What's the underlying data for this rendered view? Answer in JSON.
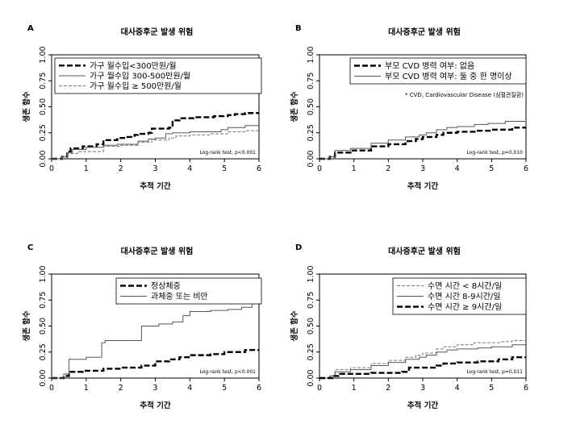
{
  "chart_data": [
    {
      "panel": "A",
      "type": "line",
      "title": "대사증후군 발생 위험",
      "xlabel": "추적 기간",
      "ylabel": "생존 함수",
      "xlim": [
        0,
        6
      ],
      "ylim": [
        0,
        1
      ],
      "xticks": [
        "0",
        "1",
        "2",
        "3",
        "4",
        "5",
        "6"
      ],
      "yticks": [
        "0.00",
        "0.25",
        "0.50",
        "0.75",
        "1.00"
      ],
      "legend_position": "top-left",
      "note": "Log-rank test, p<0.001",
      "footnote": "",
      "series": [
        {
          "name": "가구 월수입<300만원/월",
          "style": "dash-bold",
          "color": "#000000",
          "x": [
            0,
            0.3,
            0.45,
            0.55,
            0.9,
            1.3,
            1.5,
            1.9,
            2.1,
            2.4,
            2.5,
            2.8,
            2.9,
            3.4,
            3.5,
            3.7,
            4.1,
            4.7,
            5.1,
            5.3,
            5.6,
            6
          ],
          "y": [
            0,
            0.02,
            0.07,
            0.1,
            0.12,
            0.14,
            0.18,
            0.2,
            0.21,
            0.23,
            0.24,
            0.25,
            0.29,
            0.3,
            0.37,
            0.39,
            0.4,
            0.41,
            0.42,
            0.43,
            0.44,
            0.44
          ]
        },
        {
          "name": "가구 월수입 300-500만원/월",
          "style": "solid",
          "color": "#555555",
          "x": [
            0,
            0.3,
            0.45,
            0.6,
            1.0,
            1.5,
            1.9,
            2.5,
            2.8,
            3.0,
            3.3,
            3.5,
            4.0,
            4.6,
            4.9,
            5.1,
            5.6,
            6
          ],
          "y": [
            0,
            0.02,
            0.06,
            0.09,
            0.11,
            0.13,
            0.14,
            0.17,
            0.19,
            0.2,
            0.24,
            0.25,
            0.26,
            0.26,
            0.28,
            0.3,
            0.32,
            0.32
          ]
        },
        {
          "name": "가구 월수입 ≥ 500만원/월",
          "style": "dash-thin",
          "color": "#777777",
          "x": [
            0,
            0.3,
            0.45,
            0.75,
            1.5,
            2.0,
            2.5,
            2.9,
            3.4,
            3.6,
            4.0,
            4.6,
            5.1,
            5.6,
            6
          ],
          "y": [
            0,
            0.02,
            0.05,
            0.07,
            0.12,
            0.13,
            0.16,
            0.18,
            0.2,
            0.22,
            0.23,
            0.24,
            0.26,
            0.27,
            0.27
          ]
        }
      ]
    },
    {
      "panel": "B",
      "type": "line",
      "title": "대사증후군 발생 위험",
      "xlabel": "추적 기간",
      "ylabel": "생존 함수",
      "xlim": [
        0,
        6
      ],
      "ylim": [
        0,
        1
      ],
      "xticks": [
        "0",
        "1",
        "2",
        "3",
        "4",
        "5",
        "6"
      ],
      "yticks": [
        "0.00",
        "0.25",
        "0.50",
        "0.75",
        "1.00"
      ],
      "legend_position": "top-left",
      "note": "Log-rank test, p=0.010",
      "footnote": "* CVD, Cardiovascular Disease (심혈관질환)",
      "series": [
        {
          "name": "부모 CVD 병력 여부: 없음",
          "style": "dash-bold",
          "color": "#000000",
          "x": [
            0,
            0.3,
            0.45,
            0.9,
            1.5,
            2.0,
            2.5,
            2.8,
            3.0,
            3.4,
            3.6,
            4.0,
            4.6,
            5.0,
            5.6,
            6
          ],
          "y": [
            0,
            0.02,
            0.06,
            0.08,
            0.12,
            0.14,
            0.17,
            0.19,
            0.21,
            0.23,
            0.25,
            0.26,
            0.27,
            0.28,
            0.3,
            0.3
          ]
        },
        {
          "name": "부모 CVD 병력 여부: 둘 중 한 명이상",
          "style": "solid",
          "color": "#555555",
          "x": [
            0,
            0.3,
            0.45,
            0.9,
            1.5,
            2.0,
            2.5,
            2.9,
            3.1,
            3.4,
            3.7,
            4.0,
            4.5,
            4.9,
            5.4,
            6
          ],
          "y": [
            0,
            0.02,
            0.08,
            0.1,
            0.15,
            0.18,
            0.21,
            0.23,
            0.25,
            0.28,
            0.3,
            0.31,
            0.33,
            0.34,
            0.36,
            0.37
          ]
        }
      ]
    },
    {
      "panel": "C",
      "type": "line",
      "title": "대사증후군 발생 위험",
      "xlabel": "추적 기간",
      "ylabel": "생존 함수",
      "xlim": [
        0,
        6
      ],
      "ylim": [
        0,
        1
      ],
      "xticks": [
        "0",
        "1",
        "2",
        "3",
        "4",
        "5",
        "6"
      ],
      "yticks": [
        "0.00",
        "0.25",
        "0.50",
        "0.75",
        "1.00"
      ],
      "legend_position": "top-left",
      "note": "Log-rank test, p<0.001",
      "footnote": "",
      "series": [
        {
          "name": "정상체중",
          "style": "dash-bold",
          "color": "#000000",
          "x": [
            0,
            0.35,
            0.5,
            0.9,
            1.5,
            2.0,
            2.6,
            3.0,
            3.4,
            3.7,
            4.0,
            4.6,
            5.0,
            5.6,
            6
          ],
          "y": [
            0,
            0.02,
            0.06,
            0.07,
            0.09,
            0.1,
            0.12,
            0.16,
            0.18,
            0.2,
            0.22,
            0.23,
            0.25,
            0.27,
            0.27
          ]
        },
        {
          "name": "과체중 또는 비만",
          "style": "solid",
          "color": "#555555",
          "x": [
            0,
            0.35,
            0.5,
            1.0,
            1.45,
            1.55,
            2.4,
            2.6,
            3.1,
            3.5,
            3.8,
            4.0,
            4.6,
            5.1,
            5.5,
            5.8,
            6
          ],
          "y": [
            0,
            0.04,
            0.18,
            0.2,
            0.34,
            0.36,
            0.36,
            0.5,
            0.52,
            0.54,
            0.6,
            0.64,
            0.65,
            0.66,
            0.68,
            0.72,
            0.73
          ]
        }
      ]
    },
    {
      "panel": "D",
      "type": "line",
      "title": "대사증후군 발생 위험",
      "xlabel": "추적 기간",
      "ylabel": "생존 함수",
      "xlim": [
        0,
        6
      ],
      "ylim": [
        0,
        1
      ],
      "xticks": [
        "0",
        "1",
        "2",
        "3",
        "4",
        "5",
        "6"
      ],
      "yticks": [
        "0.00",
        "0.25",
        "0.50",
        "0.75",
        "1.00"
      ],
      "legend_position": "top-left",
      "note": "Log-rank test, p=0.011",
      "footnote": "",
      "series": [
        {
          "name": "수면 시간 < 8시간/일",
          "style": "dash-thin",
          "color": "#777777",
          "x": [
            0,
            0.3,
            0.45,
            0.9,
            1.5,
            2.0,
            2.5,
            2.8,
            3.0,
            3.4,
            3.6,
            4.0,
            4.5,
            4.9,
            5.3,
            5.6,
            6
          ],
          "y": [
            0,
            0.02,
            0.08,
            0.1,
            0.14,
            0.17,
            0.2,
            0.22,
            0.24,
            0.28,
            0.3,
            0.32,
            0.34,
            0.34,
            0.35,
            0.36,
            0.36
          ]
        },
        {
          "name": "수면 시간 8-9시간/일",
          "style": "solid",
          "color": "#555555",
          "x": [
            0,
            0.3,
            0.45,
            0.9,
            1.5,
            2.0,
            2.5,
            2.9,
            3.1,
            3.4,
            3.7,
            4.0,
            4.6,
            5.0,
            5.6,
            6
          ],
          "y": [
            0,
            0.02,
            0.06,
            0.08,
            0.12,
            0.15,
            0.18,
            0.2,
            0.22,
            0.25,
            0.27,
            0.28,
            0.29,
            0.3,
            0.32,
            0.32
          ]
        },
        {
          "name": "수면 시간 ≥ 9시간/일",
          "style": "dash-bold",
          "color": "#000000",
          "x": [
            0,
            0.4,
            0.6,
            1.5,
            2.4,
            2.6,
            3.4,
            3.6,
            4.0,
            4.6,
            5.2,
            5.6,
            6
          ],
          "y": [
            0,
            0.02,
            0.04,
            0.05,
            0.06,
            0.1,
            0.12,
            0.14,
            0.15,
            0.16,
            0.18,
            0.2,
            0.2
          ]
        }
      ]
    }
  ]
}
